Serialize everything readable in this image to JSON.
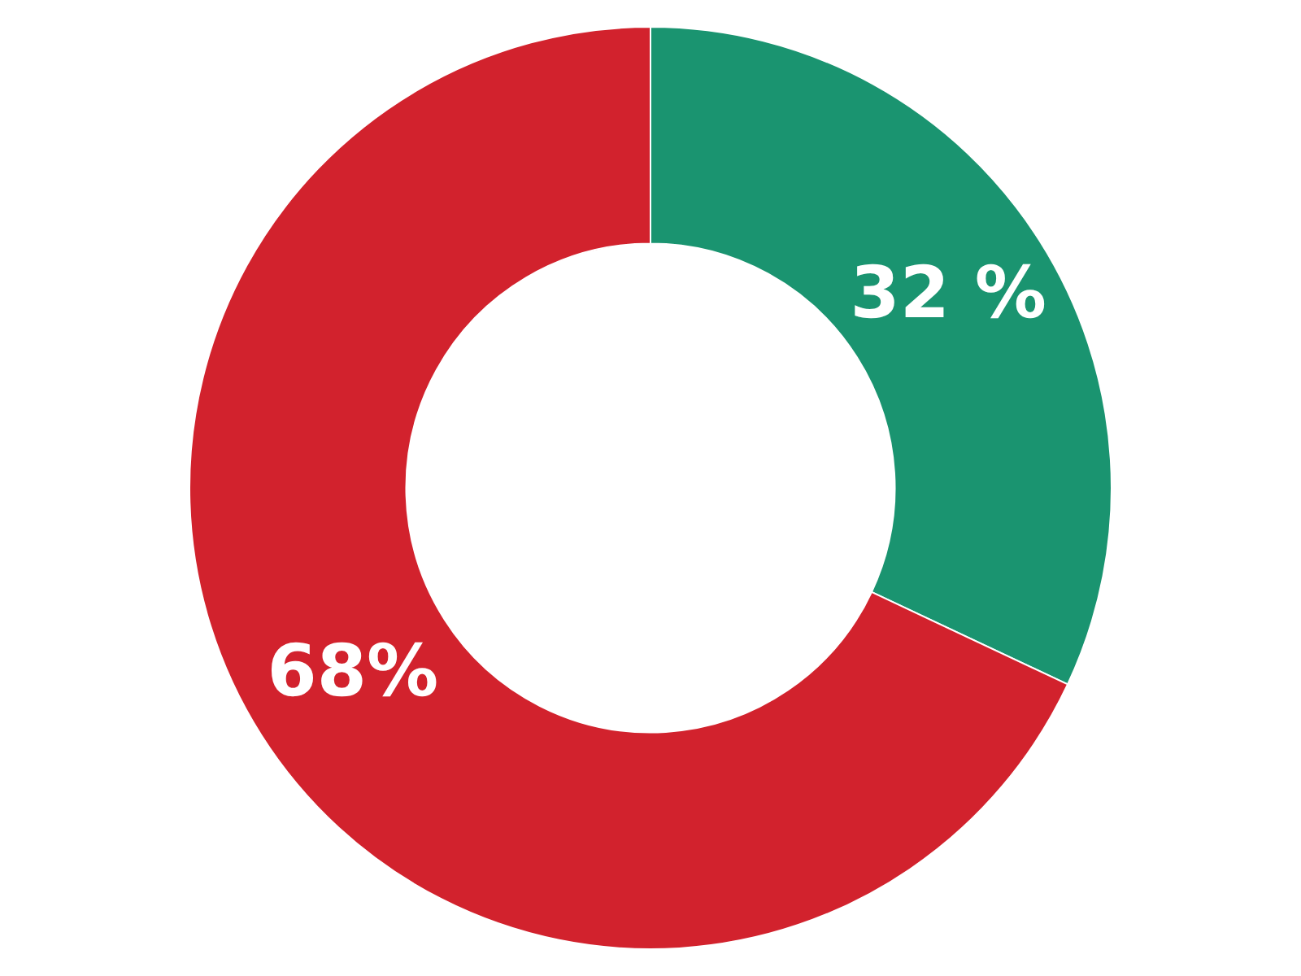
{
  "chart_data": {
    "type": "donut",
    "categories": [
      null,
      null
    ],
    "values": [
      32,
      68
    ],
    "colors": [
      "#1a9470",
      "#d2222d"
    ],
    "value_labels": [
      "32 %",
      "68%"
    ]
  }
}
